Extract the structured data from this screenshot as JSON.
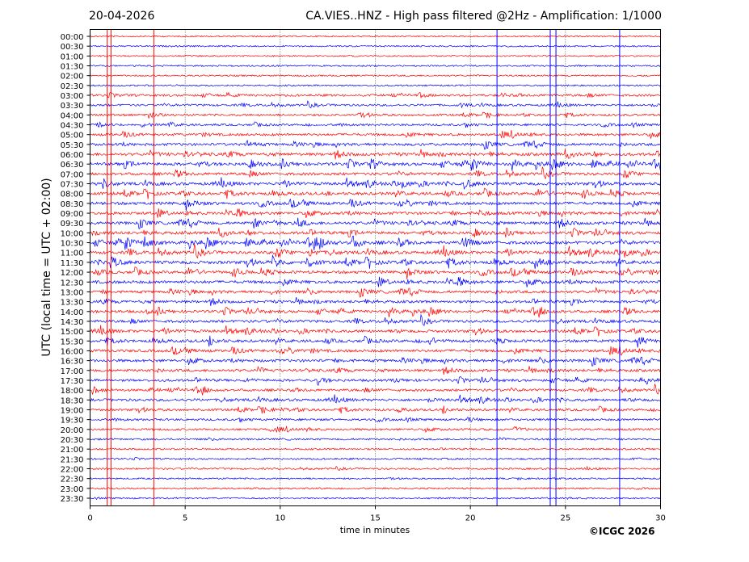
{
  "header": {
    "date": "20-04-2026",
    "title": "CA.VIES..HNZ - High pass filtered @2Hz - Amplification: 1/1000"
  },
  "footer": {
    "copyright": "©ICGC 2026"
  },
  "chart_data": {
    "type": "line",
    "title": "CA.VIES..HNZ - High pass filtered @2Hz - Amplification: 1/1000",
    "xlabel": "time in minutes",
    "ylabel": "UTC (local time = UTC + 02:00)",
    "xlim": [
      0,
      30
    ],
    "xticks": [
      "0",
      "5",
      "10",
      "15",
      "20",
      "25",
      "30"
    ],
    "grid": "vertical dotted at 5-minute intervals",
    "row_labels": [
      "00:00",
      "00:30",
      "01:00",
      "01:30",
      "02:00",
      "02:30",
      "03:00",
      "03:30",
      "04:00",
      "04:30",
      "05:00",
      "05:30",
      "06:00",
      "06:30",
      "07:00",
      "07:30",
      "08:00",
      "08:30",
      "09:00",
      "09:30",
      "10:00",
      "10:30",
      "11:00",
      "11:30",
      "12:00",
      "12:30",
      "13:00",
      "13:30",
      "14:00",
      "14:30",
      "15:00",
      "15:30",
      "16:00",
      "16:30",
      "17:00",
      "17:30",
      "18:00",
      "18:30",
      "19:00",
      "19:30",
      "20:00",
      "20:30",
      "21:00",
      "21:30",
      "22:00",
      "22:30",
      "23:00",
      "23:30"
    ],
    "row_noise_level": [
      0.05,
      0.08,
      0.05,
      0.08,
      0.06,
      0.08,
      0.35,
      0.3,
      0.3,
      0.3,
      0.45,
      0.5,
      0.6,
      0.65,
      0.55,
      0.6,
      0.6,
      0.6,
      0.6,
      0.6,
      0.6,
      0.7,
      0.65,
      0.7,
      0.6,
      0.65,
      0.55,
      0.5,
      0.55,
      0.5,
      0.55,
      0.55,
      0.55,
      0.55,
      0.5,
      0.45,
      0.45,
      0.5,
      0.4,
      0.3,
      0.3,
      0.2,
      0.15,
      0.15,
      0.15,
      0.08,
      0.1,
      0.1
    ],
    "row_colors": [
      "#ff0000",
      "#0000ff"
    ],
    "vertical_events": [
      {
        "minute": 0.9,
        "color": "#ff0000"
      },
      {
        "minute": 1.1,
        "color": "#ff0000"
      },
      {
        "minute": 3.35,
        "color": "#ff0000"
      },
      {
        "minute": 21.4,
        "color": "#0000ff"
      },
      {
        "minute": 24.2,
        "color": "#0000ff"
      },
      {
        "minute": 24.5,
        "color": "#0000ff"
      },
      {
        "minute": 27.85,
        "color": "#0000ff"
      }
    ]
  }
}
